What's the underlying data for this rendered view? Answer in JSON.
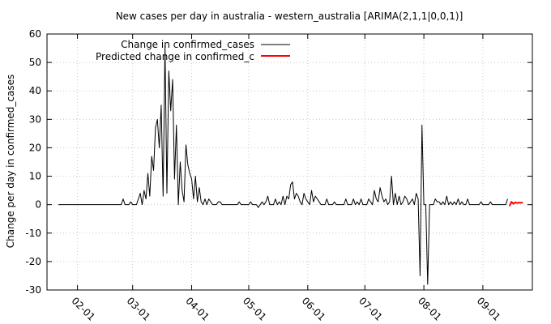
{
  "chart_data": {
    "type": "line",
    "title": "New cases per day in australia - western_australia [ARIMA(2,1,1|0,0,1)]",
    "xlabel": "",
    "ylabel": "Change per day in confirmed_cases",
    "ylim": [
      -30,
      60
    ],
    "yticks": [
      -30,
      -20,
      -10,
      0,
      10,
      20,
      30,
      40,
      50,
      60
    ],
    "x_axis": "date",
    "xlim": [
      "2020-01-16",
      "2020-09-27"
    ],
    "xticks": [
      {
        "date": "2020-02-01",
        "label": "02-01"
      },
      {
        "date": "2020-03-01",
        "label": "03-01"
      },
      {
        "date": "2020-04-01",
        "label": "04-01"
      },
      {
        "date": "2020-05-01",
        "label": "05-01"
      },
      {
        "date": "2020-06-01",
        "label": "06-01"
      },
      {
        "date": "2020-07-01",
        "label": "07-01"
      },
      {
        "date": "2020-08-01",
        "label": "08-01"
      },
      {
        "date": "2020-09-01",
        "label": "09-01"
      }
    ],
    "grid": true,
    "legend_position": "top-left",
    "series": [
      {
        "name": "Change in confirmed_cases",
        "color": "#000000",
        "points": [
          [
            "2020-01-22",
            0
          ],
          [
            "2020-02-24",
            0
          ],
          [
            "2020-02-25",
            2
          ],
          [
            "2020-02-26",
            0
          ],
          [
            "2020-02-28",
            0
          ],
          [
            "2020-02-29",
            1
          ],
          [
            "2020-03-01",
            0
          ],
          [
            "2020-03-03",
            0
          ],
          [
            "2020-03-04",
            2
          ],
          [
            "2020-03-05",
            4
          ],
          [
            "2020-03-06",
            0
          ],
          [
            "2020-03-07",
            5
          ],
          [
            "2020-03-08",
            2
          ],
          [
            "2020-03-09",
            11
          ],
          [
            "2020-03-10",
            3
          ],
          [
            "2020-03-11",
            17
          ],
          [
            "2020-03-12",
            12
          ],
          [
            "2020-03-13",
            27
          ],
          [
            "2020-03-14",
            30
          ],
          [
            "2020-03-15",
            20
          ],
          [
            "2020-03-16",
            35
          ],
          [
            "2020-03-17",
            3
          ],
          [
            "2020-03-18",
            56
          ],
          [
            "2020-03-19",
            4
          ],
          [
            "2020-03-20",
            47
          ],
          [
            "2020-03-21",
            33
          ],
          [
            "2020-03-22",
            44
          ],
          [
            "2020-03-23",
            9
          ],
          [
            "2020-03-24",
            28
          ],
          [
            "2020-03-25",
            0
          ],
          [
            "2020-03-26",
            15
          ],
          [
            "2020-03-27",
            5
          ],
          [
            "2020-03-28",
            1
          ],
          [
            "2020-03-29",
            21
          ],
          [
            "2020-03-30",
            14
          ],
          [
            "2020-03-31",
            11
          ],
          [
            "2020-04-01",
            9
          ],
          [
            "2020-04-02",
            2
          ],
          [
            "2020-04-03",
            10
          ],
          [
            "2020-04-04",
            1
          ],
          [
            "2020-04-05",
            6
          ],
          [
            "2020-04-06",
            1
          ],
          [
            "2020-04-07",
            0
          ],
          [
            "2020-04-08",
            2
          ],
          [
            "2020-04-09",
            0
          ],
          [
            "2020-04-10",
            2
          ],
          [
            "2020-04-11",
            1
          ],
          [
            "2020-04-12",
            0
          ],
          [
            "2020-04-14",
            0
          ],
          [
            "2020-04-15",
            1
          ],
          [
            "2020-04-16",
            1
          ],
          [
            "2020-04-17",
            0
          ],
          [
            "2020-04-25",
            0
          ],
          [
            "2020-04-26",
            1
          ],
          [
            "2020-04-27",
            0
          ],
          [
            "2020-05-01",
            0
          ],
          [
            "2020-05-02",
            1
          ],
          [
            "2020-05-03",
            0
          ],
          [
            "2020-05-05",
            0
          ],
          [
            "2020-05-06",
            -1
          ],
          [
            "2020-05-07",
            0
          ],
          [
            "2020-05-08",
            1
          ],
          [
            "2020-05-09",
            0
          ],
          [
            "2020-05-10",
            1
          ],
          [
            "2020-05-11",
            3
          ],
          [
            "2020-05-12",
            0
          ],
          [
            "2020-05-14",
            0
          ],
          [
            "2020-05-15",
            2
          ],
          [
            "2020-05-16",
            0
          ],
          [
            "2020-05-17",
            1
          ],
          [
            "2020-05-18",
            0
          ],
          [
            "2020-05-19",
            3
          ],
          [
            "2020-05-20",
            0
          ],
          [
            "2020-05-21",
            3
          ],
          [
            "2020-05-22",
            2
          ],
          [
            "2020-05-23",
            7
          ],
          [
            "2020-05-24",
            8
          ],
          [
            "2020-05-25",
            2
          ],
          [
            "2020-05-26",
            4
          ],
          [
            "2020-05-27",
            3
          ],
          [
            "2020-05-28",
            1
          ],
          [
            "2020-05-29",
            0
          ],
          [
            "2020-05-30",
            4
          ],
          [
            "2020-05-31",
            2
          ],
          [
            "2020-06-01",
            1
          ],
          [
            "2020-06-02",
            0
          ],
          [
            "2020-06-03",
            5
          ],
          [
            "2020-06-04",
            1
          ],
          [
            "2020-06-05",
            3
          ],
          [
            "2020-06-06",
            2
          ],
          [
            "2020-06-07",
            1
          ],
          [
            "2020-06-08",
            0
          ],
          [
            "2020-06-10",
            0
          ],
          [
            "2020-06-11",
            2
          ],
          [
            "2020-06-12",
            0
          ],
          [
            "2020-06-14",
            0
          ],
          [
            "2020-06-15",
            1
          ],
          [
            "2020-06-16",
            0
          ],
          [
            "2020-06-20",
            0
          ],
          [
            "2020-06-21",
            2
          ],
          [
            "2020-06-22",
            0
          ],
          [
            "2020-06-24",
            0
          ],
          [
            "2020-06-25",
            2
          ],
          [
            "2020-06-26",
            0
          ],
          [
            "2020-06-27",
            1
          ],
          [
            "2020-06-28",
            0
          ],
          [
            "2020-06-29",
            2
          ],
          [
            "2020-06-30",
            0
          ],
          [
            "2020-07-02",
            0
          ],
          [
            "2020-07-03",
            2
          ],
          [
            "2020-07-04",
            1
          ],
          [
            "2020-07-05",
            0
          ],
          [
            "2020-07-06",
            5
          ],
          [
            "2020-07-07",
            2
          ],
          [
            "2020-07-08",
            1
          ],
          [
            "2020-07-09",
            6
          ],
          [
            "2020-07-10",
            3
          ],
          [
            "2020-07-11",
            1
          ],
          [
            "2020-07-12",
            2
          ],
          [
            "2020-07-13",
            0
          ],
          [
            "2020-07-14",
            1
          ],
          [
            "2020-07-15",
            10
          ],
          [
            "2020-07-16",
            0
          ],
          [
            "2020-07-17",
            4
          ],
          [
            "2020-07-18",
            0
          ],
          [
            "2020-07-19",
            3
          ],
          [
            "2020-07-20",
            0
          ],
          [
            "2020-07-21",
            1
          ],
          [
            "2020-07-22",
            3
          ],
          [
            "2020-07-23",
            2
          ],
          [
            "2020-07-24",
            0
          ],
          [
            "2020-07-25",
            1
          ],
          [
            "2020-07-26",
            2
          ],
          [
            "2020-07-27",
            0
          ],
          [
            "2020-07-28",
            4
          ],
          [
            "2020-07-29",
            2
          ],
          [
            "2020-07-30",
            -25
          ],
          [
            "2020-07-31",
            28
          ],
          [
            "2020-08-01",
            0
          ],
          [
            "2020-08-02",
            0
          ],
          [
            "2020-08-03",
            -28
          ],
          [
            "2020-08-04",
            0
          ],
          [
            "2020-08-06",
            0
          ],
          [
            "2020-08-07",
            2
          ],
          [
            "2020-08-08",
            1
          ],
          [
            "2020-08-09",
            1
          ],
          [
            "2020-08-10",
            0
          ],
          [
            "2020-08-11",
            1
          ],
          [
            "2020-08-12",
            0
          ],
          [
            "2020-08-13",
            3
          ],
          [
            "2020-08-14",
            0
          ],
          [
            "2020-08-15",
            1
          ],
          [
            "2020-08-16",
            0
          ],
          [
            "2020-08-17",
            1
          ],
          [
            "2020-08-18",
            0
          ],
          [
            "2020-08-19",
            2
          ],
          [
            "2020-08-20",
            0
          ],
          [
            "2020-08-21",
            1
          ],
          [
            "2020-08-22",
            0
          ],
          [
            "2020-08-23",
            0
          ],
          [
            "2020-08-24",
            2
          ],
          [
            "2020-08-25",
            0
          ],
          [
            "2020-08-30",
            0
          ],
          [
            "2020-08-31",
            1
          ],
          [
            "2020-09-01",
            0
          ],
          [
            "2020-09-04",
            0
          ],
          [
            "2020-09-05",
            1
          ],
          [
            "2020-09-06",
            0
          ],
          [
            "2020-09-13",
            0
          ],
          [
            "2020-09-14",
            2
          ]
        ]
      },
      {
        "name": "Predicted change in confirmed_c",
        "color": "#ff0000",
        "points": [
          [
            "2020-09-15",
            -0.5
          ],
          [
            "2020-09-16",
            1
          ],
          [
            "2020-09-17",
            0.3
          ],
          [
            "2020-09-18",
            0.8
          ],
          [
            "2020-09-19",
            0.6
          ],
          [
            "2020-09-20",
            0.7
          ],
          [
            "2020-09-21",
            0.7
          ],
          [
            "2020-09-22",
            0.7
          ]
        ]
      }
    ]
  }
}
